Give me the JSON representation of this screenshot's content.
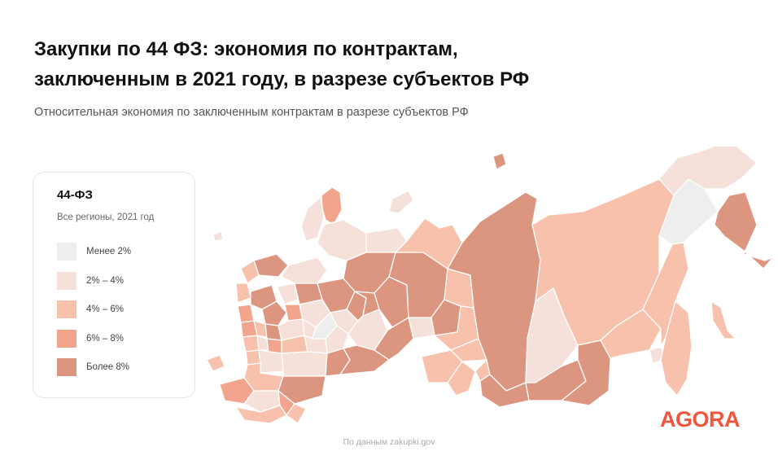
{
  "header": {
    "title_line1": "Закупки по 44 ФЗ: экономия по контрактам,",
    "title_line2": "заключенным в 2021 году, в разрезе субъектов РФ",
    "subtitle": "Относительная экономия по заключенным контрактам в разрезе субъектов РФ"
  },
  "legend": {
    "title": "44-ФЗ",
    "subtitle": "Все регионы, 2021 год",
    "items": [
      {
        "label": "Менее  2%",
        "color": "#eeeeee"
      },
      {
        "label": "2%  –  4%",
        "color": "#f5e1da"
      },
      {
        "label": "4%  –  6%",
        "color": "#f7c1ab"
      },
      {
        "label": "6%  –  8%",
        "color": "#f2a58c"
      },
      {
        "label": "Более  8%",
        "color": "#dc9680"
      }
    ]
  },
  "source": "По данным zakupki.gov",
  "logo": "AGORA",
  "colors": {
    "lt2": "#eeeeee",
    "c2_4": "#f5e1da",
    "c4_6": "#f7c1ab",
    "c6_8": "#f2a58c",
    "gt8": "#dc9680",
    "accent": "#f0563e"
  }
}
